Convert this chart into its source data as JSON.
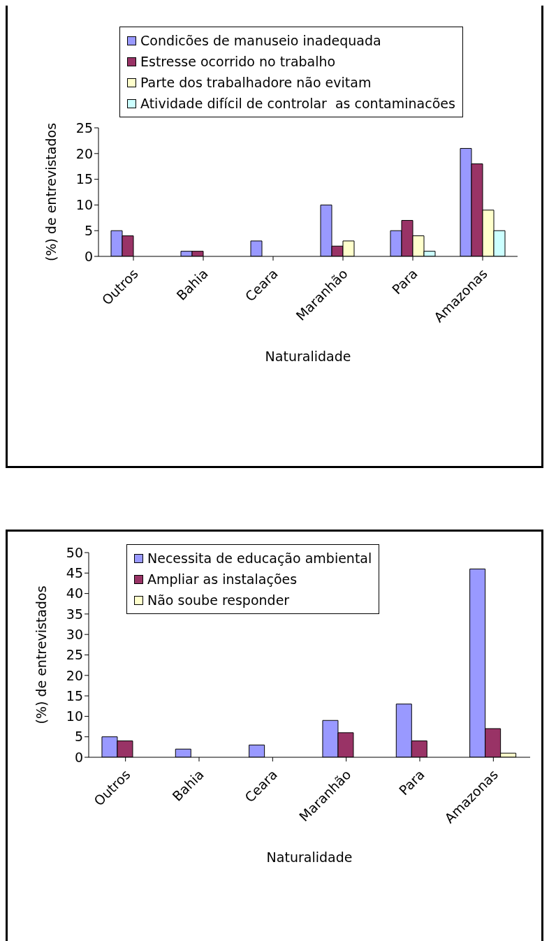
{
  "chart_data": [
    {
      "type": "bar",
      "xlabel": "Naturalidade",
      "ylabel": "(%) de entrevistados",
      "categories": [
        "Outros",
        "Bahia",
        "Ceara",
        "Maranhão",
        "Para",
        "Amazonas"
      ],
      "ylim": [
        0,
        25
      ],
      "yticks": [
        0,
        5,
        10,
        15,
        20,
        25
      ],
      "grid": false,
      "legend": "top",
      "series": [
        {
          "name": "Condicões de manuseio inadequada",
          "color": "#9999ff",
          "values": [
            5,
            1,
            3,
            10,
            5,
            21
          ]
        },
        {
          "name": "Estresse ocorrido no trabalho",
          "color": "#993366",
          "values": [
            4,
            1,
            0,
            2,
            7,
            18
          ]
        },
        {
          "name": "Parte dos trabalhadore não evitam",
          "color": "#ffffcc",
          "values": [
            0,
            0,
            0,
            3,
            4,
            9
          ]
        },
        {
          "name": "Atividade difícil de controlar  as contaminacões",
          "color": "#ccffff",
          "values": [
            0,
            0,
            0,
            0,
            1,
            5
          ]
        }
      ]
    },
    {
      "type": "bar",
      "xlabel": "Naturalidade",
      "ylabel": "(%) de entrevistados",
      "categories": [
        "Outros",
        "Bahia",
        "Ceara",
        "Maranhão",
        "Para",
        "Amazonas"
      ],
      "ylim": [
        0,
        50
      ],
      "yticks": [
        0,
        5,
        10,
        15,
        20,
        25,
        30,
        35,
        40,
        45,
        50
      ],
      "grid": false,
      "legend": "top",
      "series": [
        {
          "name": "Necessita de educação ambiental",
          "color": "#9999ff",
          "values": [
            5,
            2,
            3,
            9,
            13,
            46
          ]
        },
        {
          "name": "Ampliar as instalações",
          "color": "#993366",
          "values": [
            4,
            0,
            0,
            6,
            4,
            7
          ]
        },
        {
          "name": "Não soube responder",
          "color": "#ffffcc",
          "values": [
            0,
            0,
            0,
            0,
            0,
            1
          ]
        }
      ]
    }
  ]
}
